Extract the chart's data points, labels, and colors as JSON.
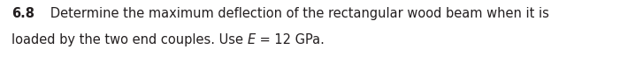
{
  "bold_number": "6.8",
  "line1_rest": "   Determine the maximum deflection of the rectangular wood beam when it is",
  "line2_normal": "loaded by the two end couples. Use ",
  "italic_E": "E",
  "equals_rest": " = 12 GPa.",
  "background_color": "#ffffff",
  "text_color": "#231f20",
  "font_size": 10.5,
  "fig_width": 7.01,
  "fig_height": 0.73,
  "dpi": 100
}
